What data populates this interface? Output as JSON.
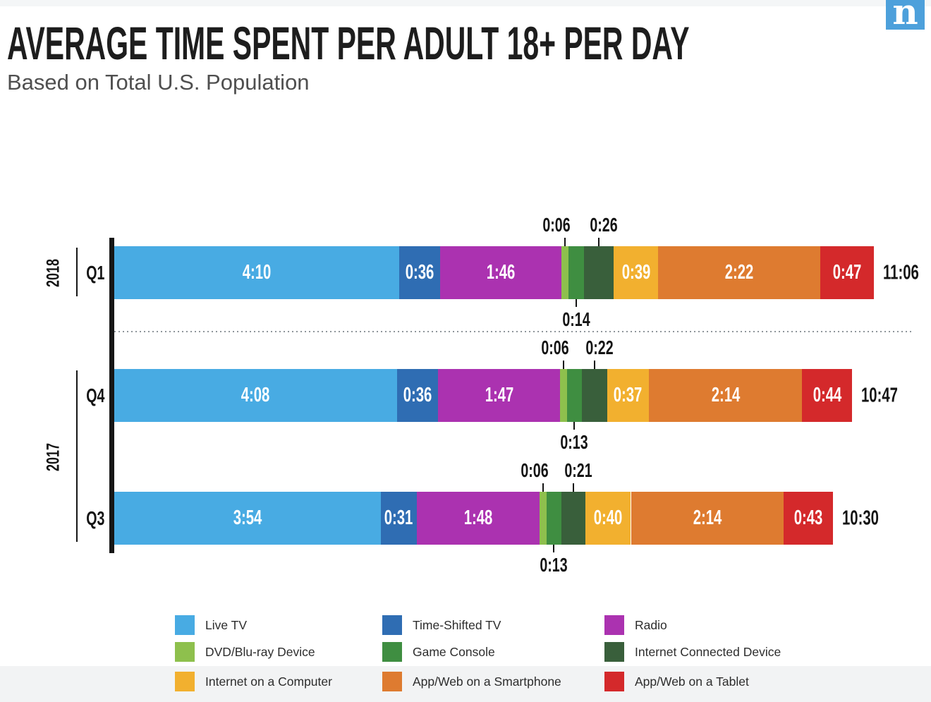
{
  "header": {
    "logo_letter": "n",
    "logo_color": "#4DA0DB"
  },
  "chart_data": {
    "type": "bar",
    "stacked": true,
    "orientation": "horizontal",
    "title": "AVERAGE TIME SPENT PER ADULT 18+ PER DAY",
    "subtitle": "Based on Total U.S. Population",
    "value_unit": "hours:minutes spent per day",
    "legend_position": "bottom",
    "axis_color": "#161616",
    "separator_style": "dotted",
    "series": [
      {
        "name": "Live TV",
        "color": "#48ABE3",
        "label_placement": "inside"
      },
      {
        "name": "Time-Shifted TV",
        "color": "#2F6DB3",
        "label_placement": "inside"
      },
      {
        "name": "Radio",
        "color": "#AB32B0",
        "label_placement": "inside"
      },
      {
        "name": "DVD/Blu-ray Device",
        "color": "#8EC04D",
        "label_placement": "above"
      },
      {
        "name": "Game Console",
        "color": "#3F8E41",
        "label_placement": "below"
      },
      {
        "name": "Internet Connected Device",
        "color": "#395F3B",
        "label_placement": "above"
      },
      {
        "name": "Internet on a Computer",
        "color": "#F2B02F",
        "label_placement": "inside"
      },
      {
        "name": "App/Web on a Smartphone",
        "color": "#DE7B30",
        "label_placement": "inside"
      },
      {
        "name": "App/Web on a Tablet",
        "color": "#D4292B",
        "label_placement": "inside"
      }
    ],
    "groups": [
      {
        "year": "2018",
        "rows": [
          {
            "quarter": "Q1",
            "values": [
              "4:10",
              "0:36",
              "1:46",
              "0:06",
              "0:14",
              "0:26",
              "0:39",
              "2:22",
              "0:47"
            ],
            "total": "11:06"
          }
        ]
      },
      {
        "year": "2017",
        "rows": [
          {
            "quarter": "Q4",
            "values": [
              "4:08",
              "0:36",
              "1:47",
              "0:06",
              "0:13",
              "0:22",
              "0:37",
              "2:14",
              "0:44"
            ],
            "total": "10:47"
          },
          {
            "quarter": "Q3",
            "values": [
              "3:54",
              "0:31",
              "1:48",
              "0:06",
              "0:13",
              "0:21",
              "0:40",
              "2:14",
              "0:43"
            ],
            "total": "10:30"
          }
        ]
      }
    ]
  }
}
